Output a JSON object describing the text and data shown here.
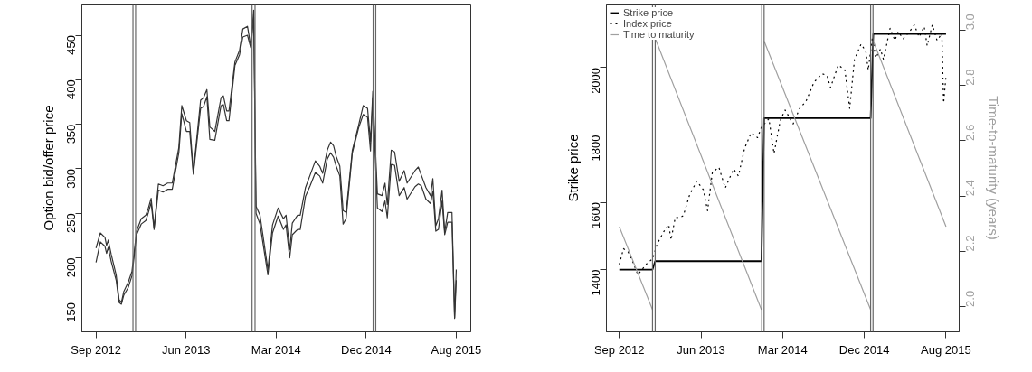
{
  "chart_data": [
    {
      "type": "line",
      "ylabel": "Option bid/offer price",
      "x": [
        "2012-09-03",
        "2012-09-16",
        "2012-09-30",
        "2012-10-05",
        "2012-10-10",
        "2012-10-19",
        "2012-11-03",
        "2012-11-12",
        "2012-11-19",
        "2012-11-26",
        "2012-12-10",
        "2012-12-21",
        "2013-01-04",
        "2013-01-18",
        "2013-02-01",
        "2013-02-08",
        "2013-02-17",
        "2013-02-26",
        "2013-03-11",
        "2013-03-25",
        "2013-04-08",
        "2013-04-22",
        "2013-05-12",
        "2013-05-21",
        "2013-06-04",
        "2013-06-14",
        "2013-06-25",
        "2013-07-17",
        "2013-07-26",
        "2013-08-05",
        "2013-08-14",
        "2013-08-29",
        "2013-09-17",
        "2013-09-24",
        "2013-10-04",
        "2013-10-11",
        "2013-10-29",
        "2013-11-12",
        "2013-11-22",
        "2013-12-06",
        "2013-12-16",
        "2013-12-25",
        "2014-01-01",
        "2014-01-13",
        "2014-02-06",
        "2014-02-20",
        "2014-03-09",
        "2014-03-25",
        "2014-04-02",
        "2014-04-13",
        "2014-04-21",
        "2014-05-07",
        "2014-05-15",
        "2014-05-31",
        "2014-06-14",
        "2014-06-30",
        "2014-07-13",
        "2014-07-22",
        "2014-08-05",
        "2014-08-15",
        "2014-08-24",
        "2014-09-01",
        "2014-09-12",
        "2014-09-22",
        "2014-10-01",
        "2014-10-20",
        "2014-11-08",
        "2014-11-22",
        "2014-12-05",
        "2014-12-14",
        "2014-12-21",
        "2015-01-04",
        "2015-01-18",
        "2015-01-27",
        "2015-02-03",
        "2015-02-15",
        "2015-02-25",
        "2015-03-11",
        "2015-03-26",
        "2015-04-04",
        "2015-04-28",
        "2015-05-08",
        "2015-05-17",
        "2015-05-31",
        "2015-06-14",
        "2015-06-21",
        "2015-06-30",
        "2015-07-08",
        "2015-07-19",
        "2015-07-27",
        "2015-08-05",
        "2015-08-18",
        "2015-08-26",
        "2015-08-31"
      ],
      "series": [
        {
          "color": "#333333",
          "values": [
            211,
            228,
            223,
            214,
            220,
            204,
            181,
            153,
            150,
            162,
            173,
            185,
            230,
            244,
            248,
            255,
            267,
            234,
            283,
            281,
            284,
            284,
            324,
            371,
            354,
            352,
            296,
            377,
            380,
            389,
            347,
            342,
            380,
            382,
            365,
            365,
            420,
            433,
            457,
            460,
            438,
            478,
            258,
            248,
            187,
            237,
            256,
            244,
            248,
            209,
            239,
            248,
            248,
            279,
            293,
            309,
            303,
            295,
            321,
            330,
            326,
            314,
            303,
            253,
            251,
            321,
            349,
            371,
            368,
            331,
            387,
            272,
            270,
            284,
            260,
            321,
            319,
            286,
            298,
            284,
            298,
            302,
            293,
            279,
            270,
            289,
            236,
            244,
            276,
            229,
            251,
            251,
            133,
            187
          ]
        },
        {
          "color": "#333333",
          "values": [
            195,
            218,
            213,
            205,
            212,
            196,
            175,
            150,
            148,
            158,
            167,
            180,
            226,
            238,
            242,
            250,
            262,
            232,
            276,
            274,
            277,
            277,
            318,
            362,
            342,
            342,
            294,
            368,
            370,
            381,
            333,
            332,
            371,
            372,
            354,
            354,
            416,
            428,
            448,
            450,
            436,
            470,
            250,
            238,
            181,
            228,
            247,
            232,
            237,
            200,
            226,
            232,
            232,
            269,
            281,
            296,
            292,
            284,
            311,
            318,
            313,
            303,
            292,
            238,
            244,
            318,
            346,
            361,
            358,
            320,
            380,
            256,
            252,
            264,
            245,
            305,
            304,
            270,
            279,
            266,
            280,
            283,
            281,
            266,
            261,
            275,
            230,
            232,
            264,
            226,
            240,
            240,
            132,
            175
          ]
        }
      ],
      "xlim": [
        "2012-07-22",
        "2015-10-14"
      ],
      "ylim": [
        117,
        485
      ],
      "xticks": [
        {
          "value": "2012-09-03",
          "label": "Sep 2012"
        },
        {
          "value": "2013-06-03",
          "label": "Jun 2013"
        },
        {
          "value": "2014-03-03",
          "label": "Mar 2014"
        },
        {
          "value": "2014-12-01",
          "label": "Dec 2014"
        },
        {
          "value": "2015-08-31",
          "label": "Aug 2015"
        }
      ],
      "yticks": [
        150,
        200,
        250,
        300,
        350,
        400,
        450
      ],
      "ref_lines": [
        {
          "axis": "x",
          "value": "2012-12-24",
          "color": "#666666"
        },
        {
          "axis": "x",
          "value": "2013-01-01",
          "color": "#666666"
        },
        {
          "axis": "x",
          "value": "2013-12-20",
          "color": "#666666"
        },
        {
          "axis": "x",
          "value": "2013-12-29",
          "color": "#666666"
        },
        {
          "axis": "x",
          "value": "2014-12-22",
          "color": "#666666"
        },
        {
          "axis": "x",
          "value": "2014-12-30",
          "color": "#666666"
        }
      ],
      "grid": false,
      "legend": false,
      "marker": "none",
      "line_style": "solid"
    },
    {
      "type": "line",
      "ylabel": "Strike price",
      "y2label": "Time-to-maturity (years)",
      "series": [
        {
          "name": "Strike price",
          "color": "#000000",
          "x": [
            "2012-09-03",
            "2012-12-23",
            "2013-01-01",
            "2013-12-22",
            "2013-12-31",
            "2014-12-22",
            "2014-12-31",
            "2015-08-31"
          ],
          "values": [
            1400,
            1400,
            1425,
            1425,
            1850,
            1850,
            2100,
            2100
          ]
        },
        {
          "name": "Index price",
          "color": "#000000",
          "line_style": "dotted",
          "x": [
            "2012-09-03",
            "2012-09-17",
            "2012-10-03",
            "2012-10-19",
            "2012-11-04",
            "2012-11-18",
            "2012-12-07",
            "2012-12-23",
            "2013-01-08",
            "2013-01-30",
            "2013-02-15",
            "2013-02-23",
            "2013-03-09",
            "2013-03-25",
            "2013-04-05",
            "2013-04-26",
            "2013-05-20",
            "2013-06-11",
            "2013-06-25",
            "2013-07-11",
            "2013-08-02",
            "2013-08-23",
            "2013-09-20",
            "2013-10-06",
            "2013-10-27",
            "2013-11-18",
            "2013-12-09",
            "2013-12-22",
            "2014-01-16",
            "2014-02-02",
            "2014-02-23",
            "2014-03-11",
            "2014-04-07",
            "2014-04-29",
            "2014-05-20",
            "2014-06-16",
            "2014-07-13",
            "2014-07-29",
            "2014-08-10",
            "2014-09-05",
            "2014-09-27",
            "2014-10-13",
            "2014-10-29",
            "2014-11-20",
            "2014-12-06",
            "2014-12-14",
            "2014-12-28",
            "2015-01-08",
            "2015-01-24",
            "2015-02-03",
            "2015-02-25",
            "2015-03-13",
            "2015-03-24",
            "2015-04-10",
            "2015-05-01",
            "2015-05-17",
            "2015-06-02",
            "2015-06-19",
            "2015-06-29",
            "2015-07-16",
            "2015-08-01",
            "2015-08-17",
            "2015-08-23",
            "2015-08-31"
          ],
          "values": [
            1415,
            1462,
            1452,
            1421,
            1385,
            1400,
            1421,
            1431,
            1477,
            1513,
            1534,
            1488,
            1555,
            1555,
            1560,
            1622,
            1663,
            1637,
            1575,
            1689,
            1704,
            1642,
            1699,
            1678,
            1761,
            1807,
            1792,
            1823,
            1848,
            1745,
            1843,
            1874,
            1833,
            1879,
            1900,
            1957,
            1982,
            1977,
            1941,
            2008,
            1993,
            1879,
            2024,
            2070,
            2049,
            1993,
            2091,
            2029,
            2055,
            2024,
            2117,
            2081,
            2107,
            2086,
            2107,
            2127,
            2091,
            2122,
            2065,
            2127,
            2081,
            2101,
            1895,
            1977
          ]
        },
        {
          "name": "Time to maturity",
          "color": "#a0a0a0",
          "axis": "y2",
          "x": [
            "2012-09-03",
            "2012-12-23",
            "2012-12-28",
            "2013-01-01",
            "2013-12-22",
            "2013-12-27",
            "2013-12-31",
            "2014-12-22",
            "2014-12-26",
            "2014-12-31",
            "2015-08-31"
          ],
          "values": [
            2.29,
            1.99,
            null,
            2.97,
            1.99,
            null,
            2.96,
            1.99,
            null,
            2.96,
            2.29
          ]
        }
      ],
      "xlim": [
        "2012-07-22",
        "2015-10-14"
      ],
      "ylim": [
        1215,
        2189
      ],
      "y2lim": [
        1.91,
        3.094
      ],
      "xticks": [
        {
          "value": "2012-09-03",
          "label": "Sep 2012"
        },
        {
          "value": "2013-06-03",
          "label": "Jun 2013"
        },
        {
          "value": "2014-03-03",
          "label": "Mar 2014"
        },
        {
          "value": "2014-12-01",
          "label": "Dec 2014"
        },
        {
          "value": "2015-08-31",
          "label": "Aug 2015"
        }
      ],
      "yticks": [
        1400,
        1600,
        1800,
        2000
      ],
      "y2ticks": [
        {
          "value": 2.0,
          "label": "2.0"
        },
        {
          "value": 2.2,
          "label": "2.2"
        },
        {
          "value": 2.4,
          "label": "2.4"
        },
        {
          "value": 2.6,
          "label": "2.6"
        },
        {
          "value": 2.8,
          "label": "2.8"
        },
        {
          "value": 3.0,
          "label": "3.0"
        }
      ],
      "ref_lines": [
        {
          "axis": "x",
          "value": "2012-12-23",
          "color": "#666666"
        },
        {
          "axis": "x",
          "value": "2013-01-01",
          "color": "#666666"
        },
        {
          "axis": "x",
          "value": "2013-12-23",
          "color": "#666666"
        },
        {
          "axis": "x",
          "value": "2013-12-31",
          "color": "#666666"
        },
        {
          "axis": "x",
          "value": "2014-12-22",
          "color": "#666666"
        },
        {
          "axis": "x",
          "value": "2014-12-30",
          "color": "#666666"
        }
      ],
      "grid": false,
      "legend": "top left",
      "marker": "none",
      "line_style": "solid"
    }
  ]
}
